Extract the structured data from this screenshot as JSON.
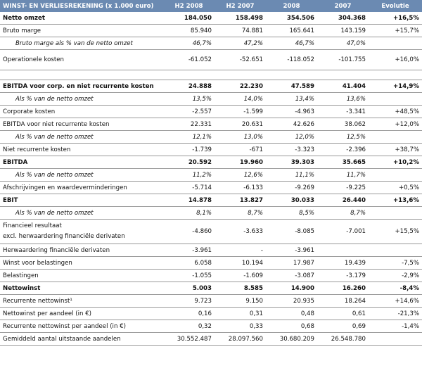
{
  "table": {
    "headers": [
      "WINST- EN VERLIESREKENING (x 1.000 euro)",
      "H2 2008",
      "H2 2007",
      "2008",
      "2007",
      "Evolutie"
    ],
    "rows": [
      {
        "label": "Netto omzet",
        "values": [
          "184.050",
          "158.498",
          "354.506",
          "304.368",
          "+16,5%"
        ],
        "style": "bold"
      },
      {
        "label": "Bruto marge",
        "values": [
          "85.940",
          "74.881",
          "165.641",
          "143.159",
          "+15,7%"
        ]
      },
      {
        "label": "Bruto marge als % van de netto omzet",
        "values": [
          "46,7%",
          "47,2%",
          "46,7%",
          "47,0%",
          ""
        ],
        "style": "italic"
      },
      {
        "label": "Operationele kosten",
        "values": [
          "-61.052",
          "-52.651",
          "-118.052",
          "-101.755",
          "+16,0%"
        ],
        "style": "tall"
      },
      {
        "label": "",
        "values": [
          "",
          "",
          "",
          "",
          ""
        ],
        "style": "spacer"
      },
      {
        "label": "EBITDA voor corp. en niet recurrente kosten",
        "values": [
          "24.888",
          "22.230",
          "47.589",
          "41.404",
          "+14,9%"
        ],
        "style": "bold"
      },
      {
        "label": "Als % van de netto omzet",
        "values": [
          "13,5%",
          "14,0%",
          "13,4%",
          "13,6%",
          ""
        ],
        "style": "italic"
      },
      {
        "label": "Corporate kosten",
        "values": [
          "-2.557",
          "-1.599",
          "-4.963",
          "-3.341",
          "+48,5%"
        ]
      },
      {
        "label": "EBITDA voor niet recurrente kosten",
        "values": [
          "22.331",
          "20.631",
          "42.626",
          "38.062",
          "+12,0%"
        ]
      },
      {
        "label": "Als % van de netto omzet",
        "values": [
          "12,1%",
          "13,0%",
          "12,0%",
          "12,5%",
          ""
        ],
        "style": "italic"
      },
      {
        "label": "Niet recurrente kosten",
        "values": [
          "-1.739",
          "-671",
          "-3.323",
          "-2.396",
          "+38,7%"
        ]
      },
      {
        "label": "EBITDA",
        "values": [
          "20.592",
          "19.960",
          "39.303",
          "35.665",
          "+10,2%"
        ],
        "style": "bold"
      },
      {
        "label": "Als % van de netto omzet",
        "values": [
          "11,2%",
          "12,6%",
          "11,1%",
          "11,7%",
          ""
        ],
        "style": "italic"
      },
      {
        "label": "Afschrijvingen en waardeverminderingen",
        "values": [
          "-5.714",
          "-6.133",
          "-9.269",
          "-9.225",
          "+0,5%"
        ]
      },
      {
        "label": "EBIT",
        "values": [
          "14.878",
          "13.827",
          "30.033",
          "26.440",
          "+13,6%"
        ],
        "style": "bold"
      },
      {
        "label": "Als % van de netto omzet",
        "values": [
          "8,1%",
          "8,7%",
          "8,5%",
          "8,7%",
          ""
        ],
        "style": "italic"
      },
      {
        "label": "Financieel resultaat",
        "label2": "excl. herwaardering financiële derivaten",
        "values": [
          "-4.860",
          "-3.633",
          "-8.085",
          "-7.001",
          "+15,5%"
        ],
        "style": "double"
      },
      {
        "label": "Herwaardering financiële derivaten",
        "values": [
          "-3.961",
          "-",
          "-3.961",
          "",
          ""
        ]
      },
      {
        "label": "Winst voor belastingen",
        "values": [
          "6.058",
          "10.194",
          "17.987",
          "19.439",
          "-7,5%"
        ]
      },
      {
        "label": "Belastingen",
        "values": [
          "-1.055",
          "-1.609",
          "-3.087",
          "-3.179",
          "-2,9%"
        ]
      },
      {
        "label": "Nettowinst",
        "values": [
          "5.003",
          "8.585",
          "14.900",
          "16.260",
          "-8,4%"
        ],
        "style": "bold"
      },
      {
        "label": "Recurrente nettowinst¹",
        "values": [
          "9.723",
          "9.150",
          "20.935",
          "18.264",
          "+14,6%"
        ]
      },
      {
        "label": "Nettowinst per aandeel (in €)",
        "values": [
          "0,16",
          "0,31",
          "0,48",
          "0,61",
          "-21,3%"
        ]
      },
      {
        "label": "Recurrente nettowinst per aandeel (in €)",
        "values": [
          "0,32",
          "0,33",
          "0,68",
          "0,69",
          "-1,4%"
        ]
      },
      {
        "label": "Gemiddeld aantal uitstaande aandelen",
        "values": [
          "30.552.487",
          "28.097.560",
          "30.680.209",
          "26.548.780",
          ""
        ]
      }
    ]
  },
  "colors": {
    "header_bg": "#6b8ab2",
    "header_text": "#ffffff",
    "row_border": "#9a9a9a"
  }
}
